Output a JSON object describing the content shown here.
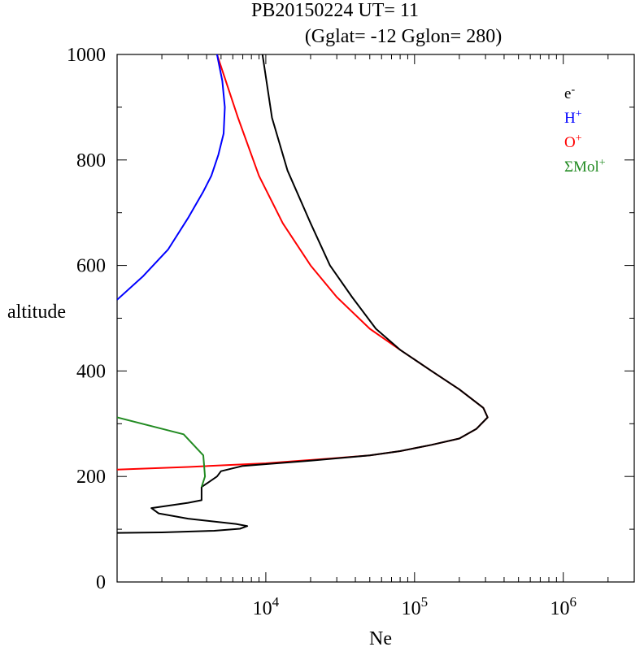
{
  "chart_data": {
    "type": "line",
    "title_line1": "PB20150224   UT=  11",
    "title_line2": "(Gglat= -12   Gglon=  280)",
    "xlabel": "Ne",
    "ylabel": "altitude",
    "xscale": "log",
    "xlim": [
      1000,
      3000000
    ],
    "ylim": [
      0,
      1000
    ],
    "y_ticks": [
      0,
      200,
      400,
      600,
      800,
      1000
    ],
    "y_tick_labels": [
      "0",
      "200",
      "400",
      "600",
      "800",
      "1000"
    ],
    "x_ticks": [
      {
        "value": 10000,
        "base": "10",
        "exp": "4"
      },
      {
        "value": 100000,
        "base": "10",
        "exp": "5"
      },
      {
        "value": 1000000,
        "base": "10",
        "exp": "6"
      }
    ],
    "legend": {
      "placement": "top-right",
      "entries": [
        {
          "base": "e",
          "sup": "-",
          "color": "#000000"
        },
        {
          "base": "H",
          "sup": "+",
          "color": "#0000ff"
        },
        {
          "base": "O",
          "sup": "+",
          "color": "#ff0000"
        },
        {
          "base": "ΣMol",
          "sup": "+",
          "color": "#228b22"
        }
      ]
    },
    "series": [
      {
        "name": "O+",
        "color": "#ff0000",
        "points": [
          [
            1000,
            213
          ],
          [
            3000,
            218
          ],
          [
            10000,
            225
          ],
          [
            30000,
            235
          ],
          [
            50000,
            240
          ],
          [
            80000,
            248
          ],
          [
            130000,
            260
          ],
          [
            200000,
            272
          ],
          [
            260000,
            290
          ],
          [
            310000,
            312
          ],
          [
            290000,
            330
          ],
          [
            200000,
            365
          ],
          [
            130000,
            400
          ],
          [
            80000,
            440
          ],
          [
            50000,
            480
          ],
          [
            30000,
            540
          ],
          [
            20000,
            600
          ],
          [
            13000,
            680
          ],
          [
            9000,
            770
          ],
          [
            6500,
            880
          ],
          [
            4700,
            1000
          ]
        ]
      },
      {
        "name": "e-",
        "color": "#000000",
        "points": [
          [
            1000,
            93
          ],
          [
            2000,
            94
          ],
          [
            4500,
            97
          ],
          [
            6700,
            101
          ],
          [
            7500,
            106
          ],
          [
            6300,
            110
          ],
          [
            3000,
            120
          ],
          [
            1900,
            130
          ],
          [
            1700,
            140
          ],
          [
            3000,
            150
          ],
          [
            3700,
            155
          ],
          [
            3700,
            168
          ],
          [
            3700,
            180
          ],
          [
            4700,
            200
          ],
          [
            5000,
            210
          ],
          [
            7000,
            220
          ],
          [
            20000,
            230
          ],
          [
            50000,
            240
          ],
          [
            80000,
            248
          ],
          [
            130000,
            260
          ],
          [
            200000,
            272
          ],
          [
            260000,
            290
          ],
          [
            310000,
            312
          ],
          [
            290000,
            330
          ],
          [
            200000,
            365
          ],
          [
            130000,
            400
          ],
          [
            80000,
            440
          ],
          [
            55000,
            480
          ],
          [
            38000,
            540
          ],
          [
            27000,
            600
          ],
          [
            20000,
            680
          ],
          [
            14000,
            780
          ],
          [
            11000,
            880
          ],
          [
            9500,
            1000
          ]
        ]
      },
      {
        "name": "H+",
        "color": "#0000ff",
        "points": [
          [
            1000,
            535
          ],
          [
            1500,
            580
          ],
          [
            2200,
            630
          ],
          [
            3000,
            690
          ],
          [
            3800,
            740
          ],
          [
            4300,
            770
          ],
          [
            4800,
            810
          ],
          [
            5200,
            850
          ],
          [
            5300,
            900
          ],
          [
            5100,
            950
          ],
          [
            4700,
            1000
          ]
        ]
      },
      {
        "name": "ΣMol+",
        "color": "#228b22",
        "points": [
          [
            1000,
            312
          ],
          [
            2800,
            280
          ],
          [
            3800,
            240
          ],
          [
            3900,
            200
          ],
          [
            3700,
            180
          ]
        ]
      }
    ]
  }
}
